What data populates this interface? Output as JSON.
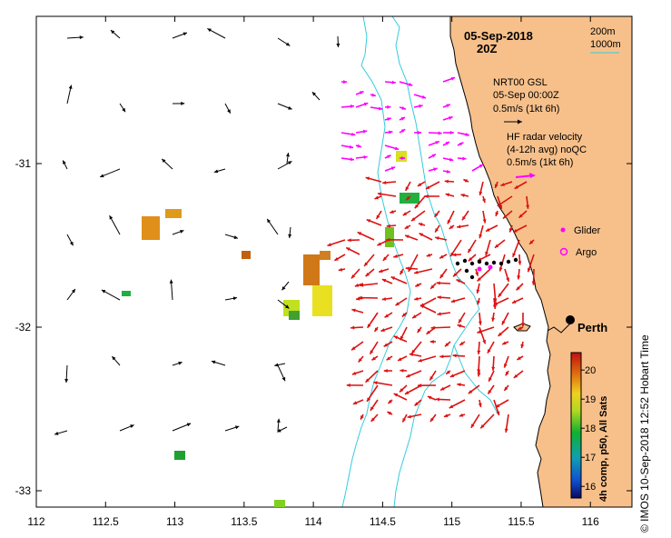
{
  "map": {
    "date": "05-Sep-2018",
    "time": "20Z",
    "x_ticks": [
      "112",
      "112.5",
      "113",
      "113.5",
      "114",
      "114.5",
      "115",
      "115.5",
      "116"
    ],
    "y_ticks": [
      "-31",
      "-32",
      "-33"
    ],
    "x_tick_values": [
      112,
      112.5,
      113,
      113.5,
      114,
      114.5,
      115,
      115.5,
      116
    ],
    "y_tick_values": [
      -31,
      -32,
      -33
    ],
    "lon_range": [
      112,
      116.3
    ],
    "lat_range": [
      -33.1,
      -30.1
    ],
    "land_color": "#f7c08a",
    "contour_color": "#33ccdd",
    "city": {
      "name": "Perth",
      "lon": 115.86,
      "lat": -31.95
    }
  },
  "legend": {
    "contour_200": "200m",
    "contour_1000": "1000m",
    "nrt_title": "NRT00 GSL",
    "nrt_time": "05-Sep 00:00Z",
    "nrt_scale": "0.5m/s (1kt 6h)",
    "hf_title": "HF radar velocity",
    "hf_avg": "(4-12h avg) noQC",
    "hf_scale": "0.5m/s (1kt 6h)",
    "glider": "Glider",
    "argo": "Argo"
  },
  "colorbar": {
    "title": "4h comp, p50, All Sats",
    "ticks": [
      "20",
      "19",
      "18",
      "17",
      "16"
    ],
    "tick_values": [
      20,
      19,
      18,
      17,
      16
    ],
    "range": [
      15.6,
      20.6
    ]
  },
  "credit": "© IMOS 10-Sep-2018 12:52 Hobart Time",
  "colors": {
    "radar_arrow": "#dd1111",
    "nrt_arrow": "#ff00ff",
    "glider": "#ff00ff",
    "argo": "#ff00ff"
  }
}
